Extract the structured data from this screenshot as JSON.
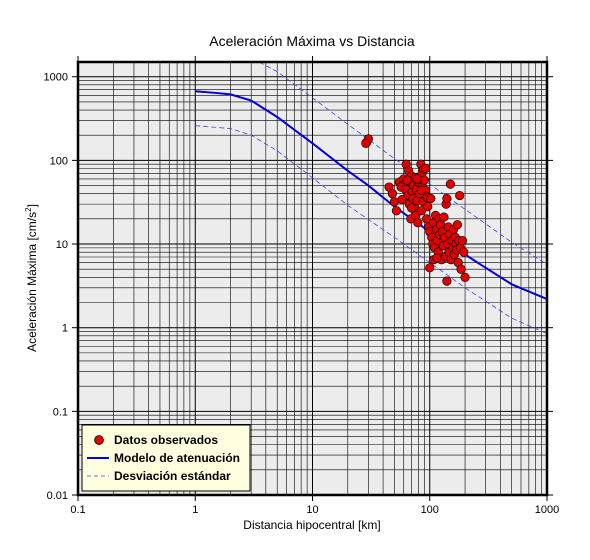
{
  "chart_data": {
    "type": "scatter",
    "title": "Aceleración Máxima vs Distancia",
    "xlabel": "Distancia hipocentral [km]",
    "ylabel_main": "Aceleración Máxima [cm/s",
    "ylabel_sup": "2",
    "ylabel_end": "]",
    "x_scale": "log",
    "y_scale": "log",
    "xlim": [
      0.1,
      1000
    ],
    "ylim": [
      0.01,
      1500
    ],
    "x_ticks": [
      0.1,
      1,
      10,
      100,
      1000
    ],
    "x_tick_labels": [
      "0.1",
      "1",
      "10",
      "100",
      "1000"
    ],
    "y_ticks": [
      0.01,
      0.1,
      1,
      10,
      100,
      1000
    ],
    "y_tick_labels": [
      "0.01",
      "0.1",
      "1",
      "10",
      "100",
      "1000"
    ],
    "grid": true,
    "legend_position": "bottom-left",
    "colors": {
      "points": "#e00000",
      "model": "#0000dd",
      "deviation": "#4444ee",
      "plot_bg": "#ececec",
      "legend_bg": "#ffffe0"
    },
    "series": [
      {
        "name": "Datos observados",
        "kind": "scatter",
        "points": [
          [
            29,
            165
          ],
          [
            30,
            180
          ],
          [
            28.5,
            160
          ],
          [
            45,
            48
          ],
          [
            48,
            40
          ],
          [
            50,
            32
          ],
          [
            52,
            25
          ],
          [
            55,
            55
          ],
          [
            57,
            48
          ],
          [
            60,
            60
          ],
          [
            62,
            45
          ],
          [
            63,
            90
          ],
          [
            65,
            38
          ],
          [
            66,
            75
          ],
          [
            67,
            30
          ],
          [
            68,
            55
          ],
          [
            69,
            20
          ],
          [
            70,
            65
          ],
          [
            71,
            42
          ],
          [
            72,
            35
          ],
          [
            73,
            50
          ],
          [
            74,
            28
          ],
          [
            75,
            62
          ],
          [
            76,
            22
          ],
          [
            77,
            45
          ],
          [
            78,
            33
          ],
          [
            79,
            18
          ],
          [
            80,
            55
          ],
          [
            82,
            40
          ],
          [
            84,
            90
          ],
          [
            85,
            25
          ],
          [
            86,
            70
          ],
          [
            87,
            48
          ],
          [
            88,
            32
          ],
          [
            89,
            78
          ],
          [
            90,
            58
          ],
          [
            92,
            44
          ],
          [
            94,
            20
          ],
          [
            95,
            36
          ],
          [
            96,
            28
          ],
          [
            98,
            16
          ],
          [
            100,
            14
          ],
          [
            102,
            35
          ],
          [
            104,
            12
          ],
          [
            106,
            10
          ],
          [
            108,
            18
          ],
          [
            110,
            9
          ],
          [
            112,
            22
          ],
          [
            114,
            15
          ],
          [
            116,
            11
          ],
          [
            118,
            8
          ],
          [
            120,
            20
          ],
          [
            122,
            13
          ],
          [
            124,
            17
          ],
          [
            126,
            6.5
          ],
          [
            128,
            14
          ],
          [
            130,
            9.5
          ],
          [
            132,
            21
          ],
          [
            134,
            12
          ],
          [
            136,
            7
          ],
          [
            138,
            30
          ],
          [
            140,
            35
          ],
          [
            142,
            10
          ],
          [
            144,
            16
          ],
          [
            146,
            8
          ],
          [
            148,
            13
          ],
          [
            150,
            52
          ],
          [
            152,
            6.5
          ],
          [
            155,
            11
          ],
          [
            158,
            9
          ],
          [
            160,
            15
          ],
          [
            162,
            7.5
          ],
          [
            165,
            12
          ],
          [
            168,
            10
          ],
          [
            170,
            8.5
          ],
          [
            172,
            17
          ],
          [
            175,
            6
          ],
          [
            178,
            11
          ],
          [
            180,
            38
          ],
          [
            182,
            9
          ],
          [
            185,
            5
          ],
          [
            190,
            11
          ],
          [
            195,
            8
          ],
          [
            200,
            4
          ],
          [
            108,
            6.5
          ],
          [
            115,
            6.8
          ],
          [
            140,
            3.6
          ],
          [
            100,
            5.2
          ],
          [
            78,
            60
          ],
          [
            85,
            44
          ],
          [
            92,
            80
          ],
          [
            70,
            27
          ],
          [
            64,
            58
          ],
          [
            58,
            34
          ]
        ]
      },
      {
        "name": "Modelo de atenuación",
        "kind": "line",
        "points": [
          [
            1,
            670
          ],
          [
            1.5,
            640
          ],
          [
            2,
            615
          ],
          [
            3,
            520
          ],
          [
            5,
            330
          ],
          [
            10,
            160
          ],
          [
            20,
            75
          ],
          [
            30,
            50
          ],
          [
            50,
            28
          ],
          [
            100,
            14
          ],
          [
            200,
            7.5
          ],
          [
            300,
            5.2
          ],
          [
            500,
            3.3
          ],
          [
            1000,
            2.2
          ]
        ]
      },
      {
        "name": "Desviación estándar",
        "kind": "dashed",
        "lines": [
          [
            [
              3.5,
              1500
            ],
            [
              5,
              1150
            ],
            [
              10,
              560
            ],
            [
              20,
              270
            ],
            [
              50,
              105
            ],
            [
              100,
              52
            ],
            [
              200,
              26
            ],
            [
              500,
              10.5
            ],
            [
              1000,
              5.7
            ]
          ],
          [
            [
              1,
              260
            ],
            [
              2,
              240
            ],
            [
              3,
              200
            ],
            [
              5,
              130
            ],
            [
              10,
              62
            ],
            [
              20,
              29
            ],
            [
              50,
              12
            ],
            [
              100,
              6
            ],
            [
              200,
              3
            ],
            [
              500,
              1.3
            ],
            [
              1000,
              0.85
            ]
          ]
        ]
      }
    ]
  }
}
